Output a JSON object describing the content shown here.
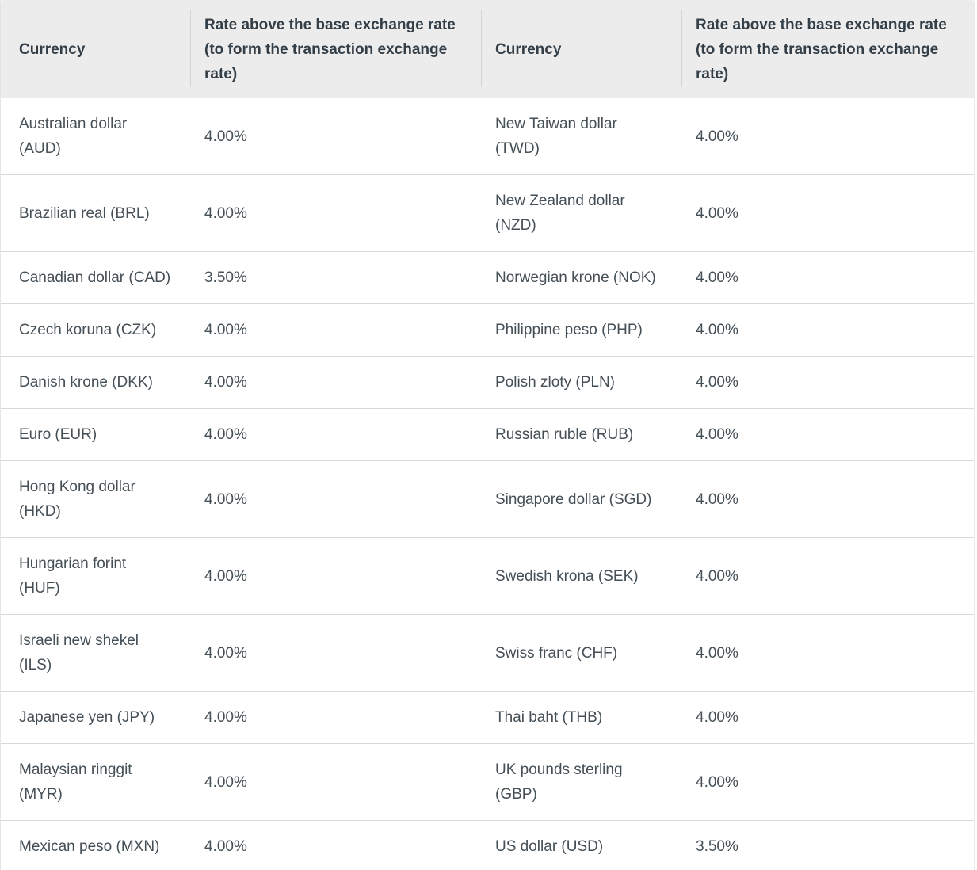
{
  "table": {
    "header": {
      "currency_label": "Currency",
      "rate_label": "Rate above the base exchange rate (to form the transaction exchange rate)"
    },
    "rows": [
      {
        "currency_left": "Australian dollar\n(AUD)",
        "rate_left": "4.00%",
        "currency_right": "New Taiwan dollar\n(TWD)",
        "rate_right": "4.00%"
      },
      {
        "currency_left": "Brazilian real (BRL)",
        "rate_left": "4.00%",
        "currency_right": "New Zealand dollar\n(NZD)",
        "rate_right": "4.00%"
      },
      {
        "currency_left": "Canadian dollar (CAD)",
        "rate_left": "3.50%",
        "currency_right": "Norwegian krone (NOK)",
        "rate_right": "4.00%"
      },
      {
        "currency_left": "Czech koruna (CZK)",
        "rate_left": "4.00%",
        "currency_right": "Philippine peso (PHP)",
        "rate_right": "4.00%"
      },
      {
        "currency_left": "Danish krone (DKK)",
        "rate_left": "4.00%",
        "currency_right": "Polish zloty (PLN)",
        "rate_right": "4.00%"
      },
      {
        "currency_left": "Euro (EUR)",
        "rate_left": "4.00%",
        "currency_right": "Russian ruble (RUB)",
        "rate_right": "4.00%"
      },
      {
        "currency_left": "Hong Kong dollar\n(HKD)",
        "rate_left": "4.00%",
        "currency_right": "Singapore dollar (SGD)",
        "rate_right": "4.00%"
      },
      {
        "currency_left": "Hungarian forint\n(HUF)",
        "rate_left": "4.00%",
        "currency_right": "Swedish krona (SEK)",
        "rate_right": "4.00%"
      },
      {
        "currency_left": "Israeli new shekel\n(ILS)",
        "rate_left": "4.00%",
        "currency_right": "Swiss franc (CHF)",
        "rate_right": "4.00%"
      },
      {
        "currency_left": "Japanese yen (JPY)",
        "rate_left": "4.00%",
        "currency_right": "Thai baht (THB)",
        "rate_right": "4.00%"
      },
      {
        "currency_left": "Malaysian ringgit\n(MYR)",
        "rate_left": "4.00%",
        "currency_right": "UK pounds sterling\n(GBP)",
        "rate_right": "4.00%"
      },
      {
        "currency_left": "Mexican peso (MXN)",
        "rate_left": "4.00%",
        "currency_right": "US dollar (USD)",
        "rate_right": "3.50%"
      }
    ]
  },
  "colors": {
    "header_bg": "#ececed",
    "header_text": "#333e47",
    "body_text": "#454f56",
    "row_separator": "#d4dad8",
    "header_divider": "#d2d5d6",
    "table_left_border": "#e2e4e5"
  }
}
